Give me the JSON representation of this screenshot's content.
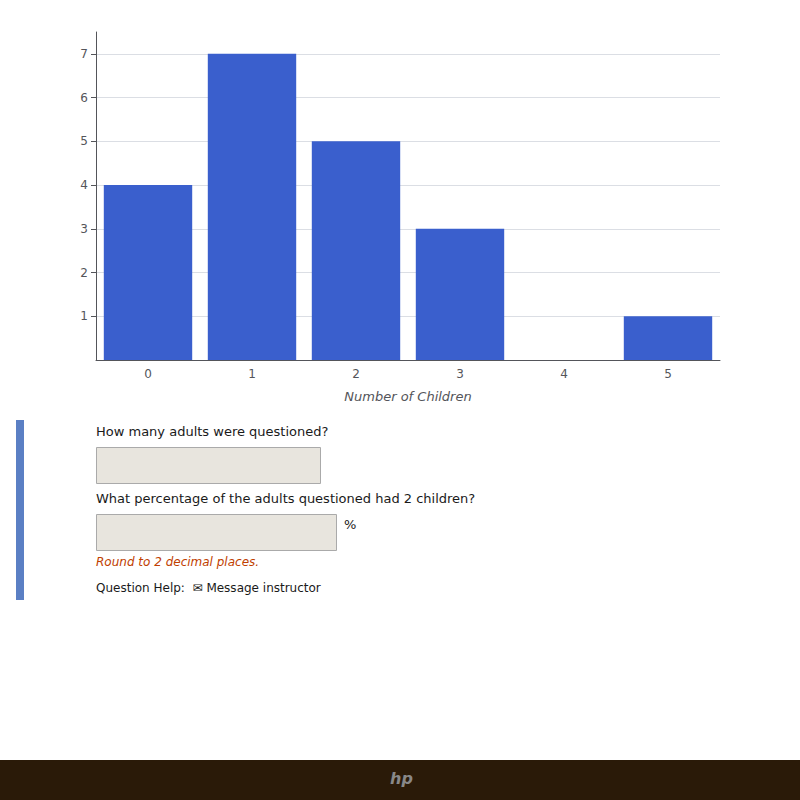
{
  "chart_data": {
    "type": "bar",
    "xlabel": "Number of Children",
    "categories": [
      0,
      1,
      2,
      3,
      4,
      5
    ],
    "values": [
      4,
      7,
      5,
      3,
      0,
      1
    ],
    "color": "#3a5fcd",
    "ylim": [
      0,
      7.5
    ],
    "yticks": [
      1,
      2,
      3,
      4,
      5,
      6,
      7
    ],
    "grid": true,
    "annotations": [
      "How many adults were questioned?",
      "What percentage of the adults questioned had 2 children?",
      "%",
      "Round to 2 decimal places.",
      "Question Help:  ✉ Message instructor",
      "hp"
    ]
  }
}
